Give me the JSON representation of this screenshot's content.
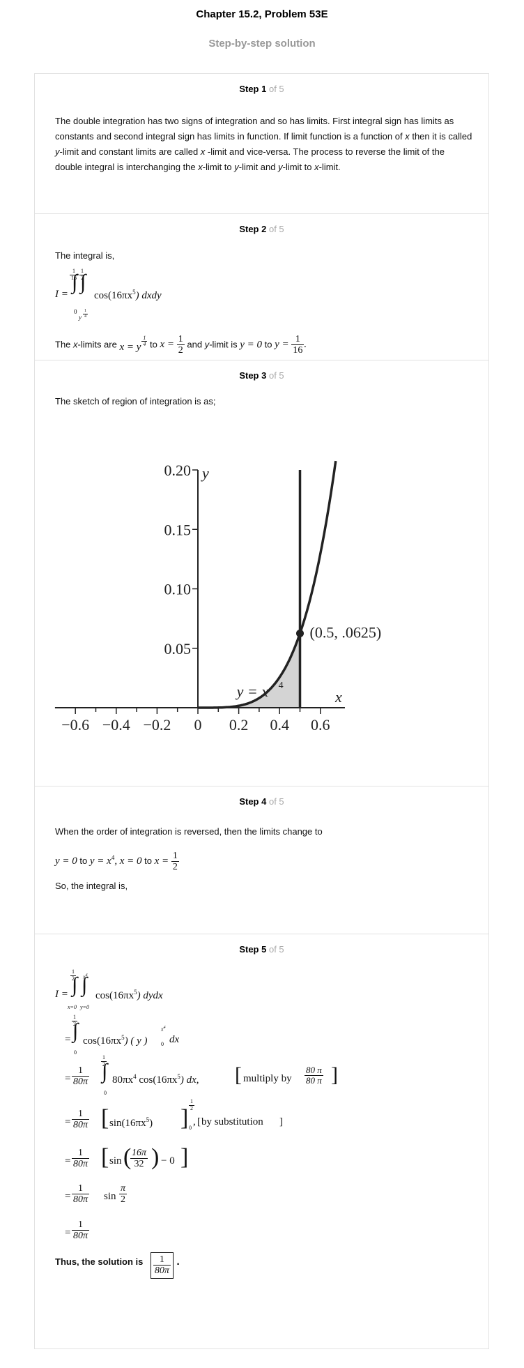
{
  "header": {
    "title": "Chapter 15.2, Problem 53E",
    "subtitle": "Step-by-step solution"
  },
  "steps": [
    {
      "label": "Step 1",
      "of": "of 5",
      "text": [
        {
          "t": "The double integration has two signs of integration and so has limits. First integral sign has limits as constants and second integral sign has limits in function. If limit function is a function of "
        },
        {
          "i": "x"
        },
        {
          "t": " then it is called "
        },
        {
          "i": "y"
        },
        {
          "t": "-limit and constant limits are called "
        },
        {
          "i": "x"
        },
        {
          "t": " -limit and vice-versa. The process to reverse the limit of the double integral is interchanging the "
        },
        {
          "i": "x"
        },
        {
          "t": "-limit to "
        },
        {
          "i": "y"
        },
        {
          "t": "-limit and "
        },
        {
          "i": "y"
        },
        {
          "t": "-limit to "
        },
        {
          "i": "x"
        },
        {
          "t": "-limit."
        }
      ]
    },
    {
      "label": "Step 2",
      "of": "of 5",
      "intro": "The integral is,",
      "integral": {
        "lhs": "I =",
        "outer_upper_num": "1",
        "outer_upper_den": "16",
        "outer_lower": "0",
        "inner_upper_num": "1",
        "inner_upper_den": "2",
        "inner_lower": "y",
        "inner_lower_exp_num": "1",
        "inner_lower_exp_den": "4",
        "integrand": "cos(16πx",
        "integrand_exp": "5",
        "integrand_end": ") dxdy"
      },
      "limits_text": {
        "a": "The ",
        "b": "-limits are ",
        "c": " to ",
        "d": " and ",
        "e": "-limit is ",
        "f": " to ",
        "x": "x",
        "y": "y",
        "x_eq": "x = y",
        "x_exp_num": "1",
        "x_exp_den": "4",
        "x2_lhs": "x =",
        "x2_num": "1",
        "x2_den": "2",
        "y1": "y = 0",
        "y2_lhs": "y =",
        "y2_num": "1",
        "y2_den": "16",
        "period": "."
      }
    },
    {
      "label": "Step 3",
      "of": "of 5",
      "intro": "The sketch of region of integration is as;"
    },
    {
      "label": "Step 4",
      "of": "of 5",
      "text": "When the order of integration is reversed, then the limits change to",
      "limits": {
        "y1": "y = 0",
        "to": "to",
        "y2": "y = x",
        "y2_exp": "4",
        "comma": ",",
        "x1": "x = 0",
        "x2_lhs": "x =",
        "x2_num": "1",
        "x2_den": "2"
      },
      "so": "So, the integral is,"
    },
    {
      "label": "Step 5",
      "of": "of 5",
      "line1": {
        "lhs": "I =",
        "outer_upper_num": "1",
        "outer_upper_den": "2",
        "outer_lower": "x=0",
        "inner_upper": "x",
        "inner_upper_exp": "4",
        "inner_lower": "y=0",
        "body": "cos(16πx",
        "body_exp": "5",
        "body_end": ") dydx"
      },
      "line2": {
        "eq": "=",
        "upper_num": "1",
        "upper_den": "2",
        "lower": "0",
        "body": "cos(16πx",
        "body_exp": "5",
        "body_mid": ") ( y )",
        "eval_upper": "x",
        "eval_upper_exp": "4",
        "eval_lower": "0",
        "body_end": "dx"
      },
      "line3": {
        "eq": "=",
        "c_num": "1",
        "c_den": "80π",
        "upper_num": "1",
        "upper_den": "2",
        "lower": "0",
        "body": "80πx",
        "body_exp": "4",
        "body2": " cos(16πx",
        "body2_exp": "5",
        "body_end": ") dx,",
        "note": "multiply by",
        "note_num": "80 π",
        "note_den": "80 π"
      },
      "line4": {
        "eq": "=",
        "c_num": "1",
        "c_den": "80π",
        "body": "sin(16πx",
        "body_exp": "5",
        "body_end": ")",
        "upper_num": "1",
        "upper_den": "2",
        "lower": "0",
        "note": "by substitution"
      },
      "line5": {
        "eq": "=",
        "c_num": "1",
        "c_den": "80π",
        "sin": "sin",
        "a_num": "16π",
        "a_den": "32",
        "minus": "− 0"
      },
      "line6": {
        "eq": "=",
        "c_num": "1",
        "c_den": "80π",
        "sin": "sin",
        "a_num": "π",
        "a_den": "2"
      },
      "line7": {
        "eq": "=",
        "c_num": "1",
        "c_den": "80π"
      },
      "conclusion": {
        "text": "Thus, the solution is",
        "ans_num": "1",
        "ans_den": "80π",
        "period": "."
      }
    }
  ],
  "chart_data": {
    "type": "line",
    "title": "",
    "xlabel": "x",
    "ylabel": "y",
    "xlim": [
      -0.7,
      0.72
    ],
    "ylim": [
      0,
      0.2
    ],
    "x_ticks": [
      "−0.6",
      "−0.4",
      "−0.2",
      "0",
      "0.2",
      "0.4",
      "0.6"
    ],
    "x_tick_values": [
      -0.6,
      -0.4,
      -0.2,
      0,
      0.2,
      0.4,
      0.6
    ],
    "y_ticks": [
      "0.05",
      "0.10",
      "0.15",
      "0.20"
    ],
    "y_tick_values": [
      0.05,
      0.1,
      0.15,
      0.2
    ],
    "curve": {
      "label": "y = x",
      "label_exp": "4",
      "equation": "y = x^4"
    },
    "vertical_line_x": 0.5,
    "point": {
      "x": 0.5,
      "y": 0.0625,
      "label": "(0.5, .0625)"
    },
    "shaded_region": {
      "x_from": 0,
      "x_to": 0.5,
      "under": "y = x^4"
    },
    "colors": {
      "line": "#222222",
      "fill": "#d4d4d4"
    }
  }
}
